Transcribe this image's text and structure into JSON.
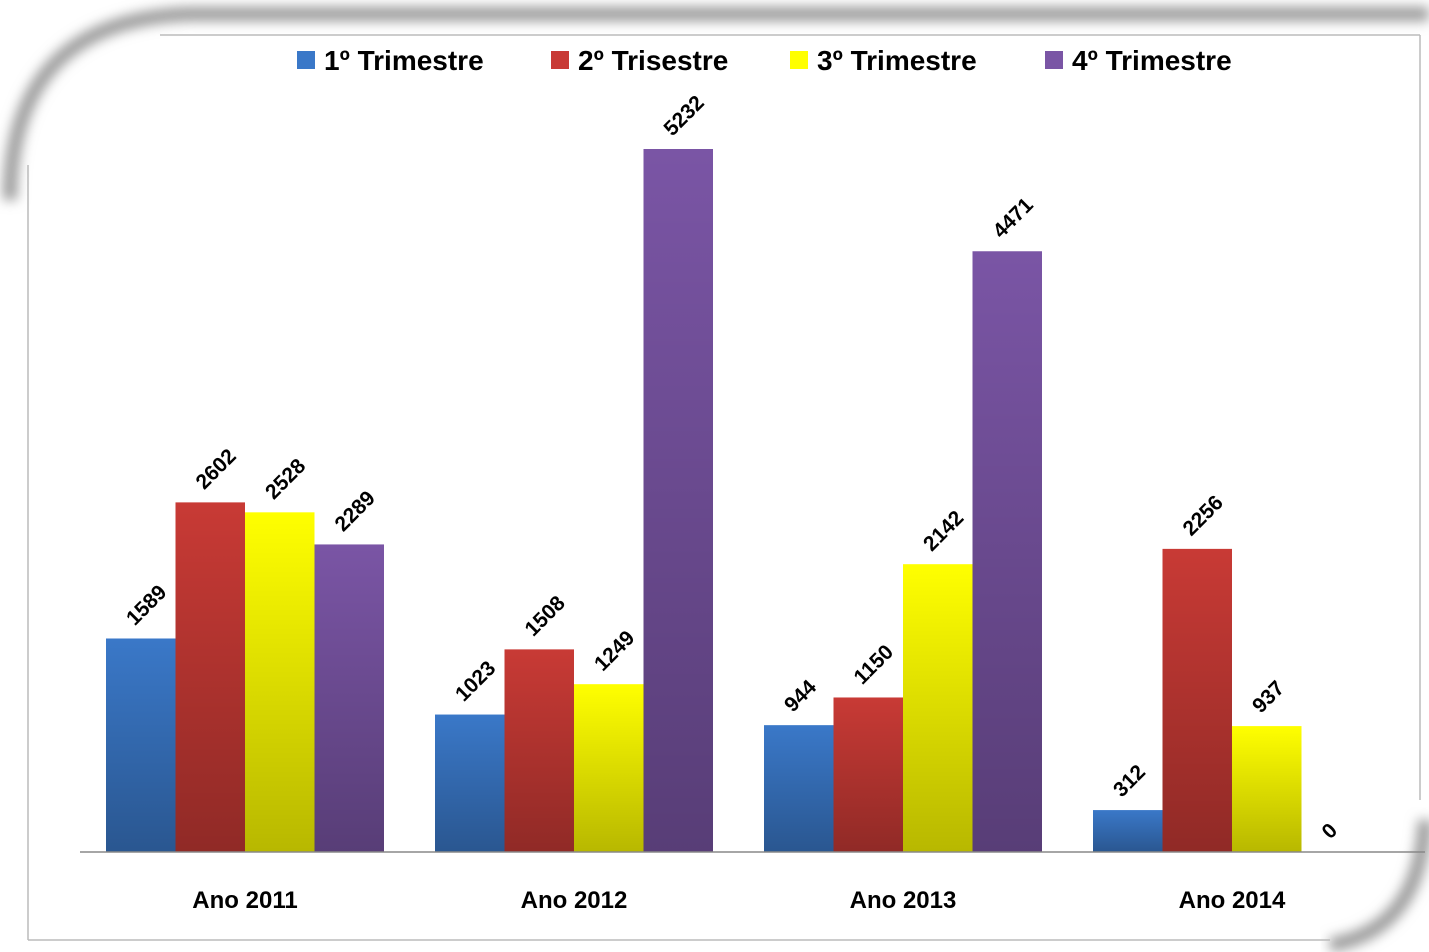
{
  "chart_data": {
    "type": "bar",
    "categories": [
      "Ano 2011",
      "Ano 2012",
      "Ano 2013",
      "Ano 2014"
    ],
    "series": [
      {
        "name": "1º Trimestre",
        "color": "#3a78c8",
        "values": [
          1589,
          1023,
          944,
          312
        ]
      },
      {
        "name": "2º Trisestre",
        "color": "#c83a35",
        "values": [
          2602,
          1508,
          1150,
          2256
        ]
      },
      {
        "name": "3º Trimestre",
        "color": "#ffff00",
        "values": [
          2528,
          1249,
          2142,
          937
        ]
      },
      {
        "name": "4º Trimestre",
        "color": "#7a55a5",
        "values": [
          2289,
          5232,
          4471,
          0
        ]
      }
    ],
    "legend": "top"
  }
}
